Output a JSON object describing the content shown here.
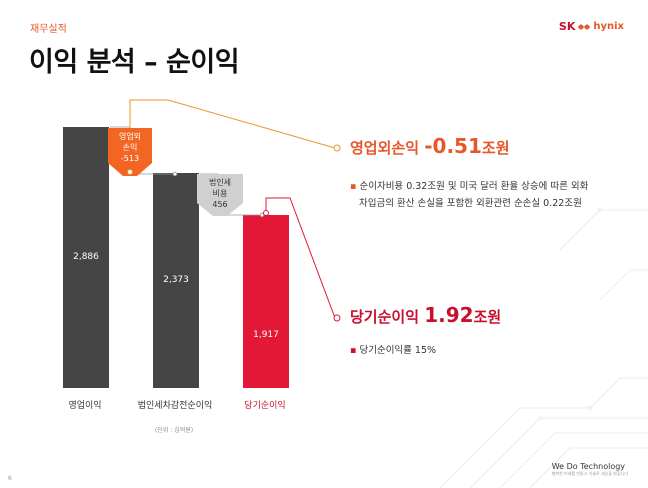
{
  "header": {
    "section": "재무실적",
    "title": "이익 분석 – 순이익",
    "brand_sk": "SK",
    "brand_hynix": "hynix"
  },
  "chart_data": {
    "type": "bar",
    "categories": [
      "영업이익",
      "법인세차감전순이익",
      "당기순이익"
    ],
    "values": [
      2886,
      2373,
      1917
    ],
    "value_labels": [
      "2,886",
      "2,373",
      "1,917"
    ],
    "bridges": [
      {
        "label_lines": [
          "영업외",
          "손익",
          "-513"
        ],
        "value": -513
      },
      {
        "label_lines": [
          "법인세",
          "비용",
          "456"
        ],
        "value": 456
      }
    ],
    "unit": "(단위 : 십억원)",
    "colors": {
      "bar": "#454545",
      "net": "#e21836",
      "bridge_loss": "#f26522",
      "bridge_tax": "#bdbdbd"
    }
  },
  "callout_loss": {
    "prefix": "영업외손익 ",
    "value": "-0.51",
    "suffix": "조원",
    "bullets": [
      "순이자비용 0.32조원 및 미국 달러 환율 상승에 따른 외화",
      "차입금의 환산 손실을 포함한 외환관련 순손실 0.22조원"
    ]
  },
  "callout_net": {
    "prefix": "당기순이익 ",
    "value": "1.92",
    "suffix": "조원",
    "bullets": [
      "당기순이익률 15%"
    ]
  },
  "footer": {
    "brand": "We Do Technology",
    "sub": "행복한 미래를 만들고 기술로 세상을 밝힙니다",
    "page": "6"
  }
}
